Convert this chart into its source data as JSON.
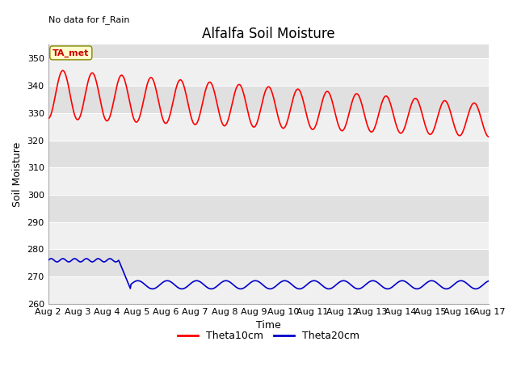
{
  "title": "Alfalfa Soil Moisture",
  "top_left_text": "No data for f_Rain",
  "xlabel": "Time",
  "ylabel": "Soil Moisture",
  "ylim": [
    260,
    355
  ],
  "yticks": [
    260,
    270,
    280,
    290,
    300,
    310,
    320,
    330,
    340,
    350
  ],
  "x_start_day": 2,
  "x_end_day": 17,
  "x_tick_days": [
    2,
    3,
    4,
    5,
    6,
    7,
    8,
    9,
    10,
    11,
    12,
    13,
    14,
    15,
    16,
    17
  ],
  "x_tick_labels": [
    "Aug 2",
    "Aug 3",
    "Aug 4",
    "Aug 5",
    "Aug 6",
    "Aug 7",
    "Aug 8",
    "Aug 9",
    "Aug 10",
    "Aug 11",
    "Aug 12",
    "Aug 13",
    "Aug 14",
    "Aug 15",
    "Aug 16",
    "Aug 17"
  ],
  "ta_met_label": "TA_met",
  "ta_met_box_color": "#ffffcc",
  "ta_met_text_color": "#cc0000",
  "legend_entries": [
    "Theta10cm",
    "Theta20cm"
  ],
  "legend_colors": [
    "#ff0000",
    "#0000cc"
  ],
  "line1_color": "#ff0000",
  "line2_color": "#0000cc",
  "background_color": "#ffffff",
  "plot_bg_light": "#f0f0f0",
  "plot_bg_dark": "#e0e0e0",
  "grid_color": "#ffffff",
  "title_fontsize": 12,
  "axis_label_fontsize": 9,
  "tick_fontsize": 8,
  "band_boundaries": [
    260,
    270,
    280,
    290,
    300,
    310,
    320,
    330,
    340,
    350,
    360
  ]
}
